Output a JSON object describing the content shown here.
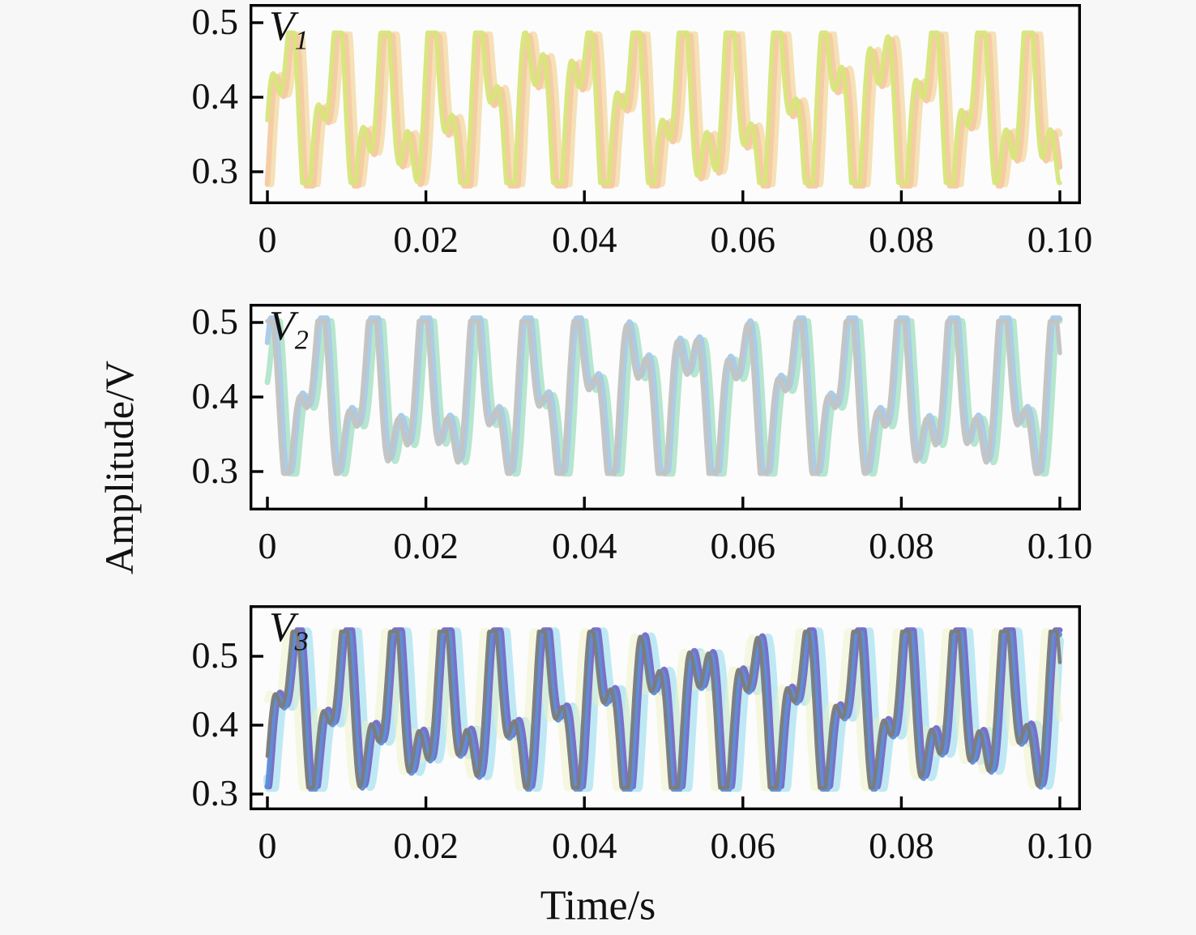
{
  "figure": {
    "background": "#f7f7f7",
    "plot_background": "#fcfcfc",
    "axis_color": "#000000",
    "ylabel": "Amplitude/V",
    "xlabel": "Time/s"
  },
  "chart_data": [
    {
      "type": "line",
      "panel": "V1",
      "label": {
        "main": "V",
        "sub": "1"
      },
      "xlabel_units": "s",
      "ylabel_units": "V",
      "xlim": [
        -0.00225,
        0.10266
      ],
      "ylim": [
        0.2565,
        0.525
      ],
      "grid": false,
      "legend": "none",
      "xticks": [
        {
          "v": 0.0,
          "label": "0"
        },
        {
          "v": 0.02,
          "label": "0.02"
        },
        {
          "v": 0.04,
          "label": "0.04"
        },
        {
          "v": 0.06,
          "label": "0.06"
        },
        {
          "v": 0.08,
          "label": "0.08"
        },
        {
          "v": 0.1,
          "label": "0.10"
        }
      ],
      "yticks": [
        {
          "v": 0.5,
          "label": "0.5"
        },
        {
          "v": 0.4,
          "label": "0.4"
        },
        {
          "v": 0.3,
          "label": "0.3"
        }
      ],
      "signal": {
        "center": 0.386,
        "clamp": [
          0.285,
          0.4865
        ],
        "components": [
          {
            "amp": 0.095,
            "freq": 160,
            "phase": -0.7
          },
          {
            "amp": 0.062,
            "freq": 345,
            "phase": 0.8
          }
        ],
        "duration_s": 0.1
      },
      "series": [
        {
          "name": "trace-gold",
          "color": "#eecb7a",
          "width": 7.0,
          "t_offset": 0.001,
          "dv": -0.002,
          "opacity": 0.55
        },
        {
          "name": "trace-peach",
          "color": "#f6c9a2",
          "width": 6.5,
          "t_offset": 0.00045,
          "dv": -0.004,
          "opacity": 0.95
        },
        {
          "name": "trace-green",
          "color": "#d7e57a",
          "width": 5.5,
          "t_offset": 0.0,
          "dv": 0.0,
          "opacity": 0.95
        }
      ]
    },
    {
      "type": "line",
      "panel": "V2",
      "label": {
        "main": "V",
        "sub": "2"
      },
      "xlabel_units": "s",
      "ylabel_units": "V",
      "xlim": [
        -0.00225,
        0.10266
      ],
      "ylim": [
        0.2478,
        0.525
      ],
      "grid": false,
      "legend": "none",
      "xticks": [
        {
          "v": 0.0,
          "label": "0"
        },
        {
          "v": 0.02,
          "label": "0.02"
        },
        {
          "v": 0.04,
          "label": "0.04"
        },
        {
          "v": 0.06,
          "label": "0.06"
        },
        {
          "v": 0.08,
          "label": "0.08"
        },
        {
          "v": 0.1,
          "label": "0.10"
        }
      ],
      "yticks": [
        {
          "v": 0.5,
          "label": "0.5"
        },
        {
          "v": 0.4,
          "label": "0.4"
        },
        {
          "v": 0.3,
          "label": "0.3"
        }
      ],
      "signal": {
        "center": 0.4,
        "clamp": [
          0.297,
          0.502
        ],
        "components": [
          {
            "amp": 0.085,
            "freq": 150,
            "phase": 1.9
          },
          {
            "amp": 0.055,
            "freq": 315,
            "phase": 0.4
          }
        ],
        "duration_s": 0.1
      },
      "series": [
        {
          "name": "trace-mint",
          "color": "#b2e5cb",
          "width": 7.0,
          "t_offset": 0.0009,
          "dv": 0.0,
          "opacity": 0.95
        },
        {
          "name": "trace-blue",
          "color": "#a9c9e8",
          "width": 6.5,
          "t_offset": 0.00035,
          "dv": 0.004,
          "opacity": 0.95
        },
        {
          "name": "trace-gray",
          "color": "#c2c3c3",
          "width": 5.5,
          "t_offset": 0.0,
          "dv": 0.0,
          "opacity": 0.97
        }
      ]
    },
    {
      "type": "line",
      "panel": "V3",
      "label": {
        "main": "V",
        "sub": "3"
      },
      "xlabel_units": "s",
      "ylabel_units": "V",
      "xlim": [
        -0.00225,
        0.10266
      ],
      "ylim": [
        0.2765,
        0.5741
      ],
      "grid": false,
      "legend": "none",
      "xticks": [
        {
          "v": 0.0,
          "label": "0"
        },
        {
          "v": 0.02,
          "label": "0.02"
        },
        {
          "v": 0.04,
          "label": "0.04"
        },
        {
          "v": 0.06,
          "label": "0.06"
        },
        {
          "v": 0.08,
          "label": "0.08"
        },
        {
          "v": 0.1,
          "label": "0.10"
        }
      ],
      "yticks": [
        {
          "v": 0.5,
          "label": "0.5"
        },
        {
          "v": 0.4,
          "label": "0.4"
        },
        {
          "v": 0.3,
          "label": "0.3"
        }
      ],
      "signal": {
        "center": 0.423,
        "clamp": [
          0.309,
          0.536
        ],
        "components": [
          {
            "amp": 0.092,
            "freq": 155,
            "phase": -1.2
          },
          {
            "amp": 0.06,
            "freq": 325,
            "phase": 0.3
          }
        ],
        "duration_s": 0.1
      },
      "series": [
        {
          "name": "trace-cyan",
          "color": "#b7e7f3",
          "width": 10.0,
          "t_offset": 0.0013,
          "dv": 0.0,
          "opacity": 0.9
        },
        {
          "name": "trace-paleyellow",
          "color": "#eef2c4",
          "width": 8.0,
          "t_offset": -0.0007,
          "dv": 0.0,
          "opacity": 0.5
        },
        {
          "name": "trace-violet",
          "color": "#7668c6",
          "width": 7.0,
          "t_offset": 0.0006,
          "dv": 0.002,
          "opacity": 0.95
        },
        {
          "name": "trace-blue",
          "color": "#5e8ed6",
          "width": 6.0,
          "t_offset": 0.0003,
          "dv": -0.002,
          "opacity": 0.95
        },
        {
          "name": "trace-gray",
          "color": "#7c7c7c",
          "width": 4.5,
          "t_offset": 0.0,
          "dv": 0.0,
          "opacity": 0.97
        }
      ]
    }
  ]
}
